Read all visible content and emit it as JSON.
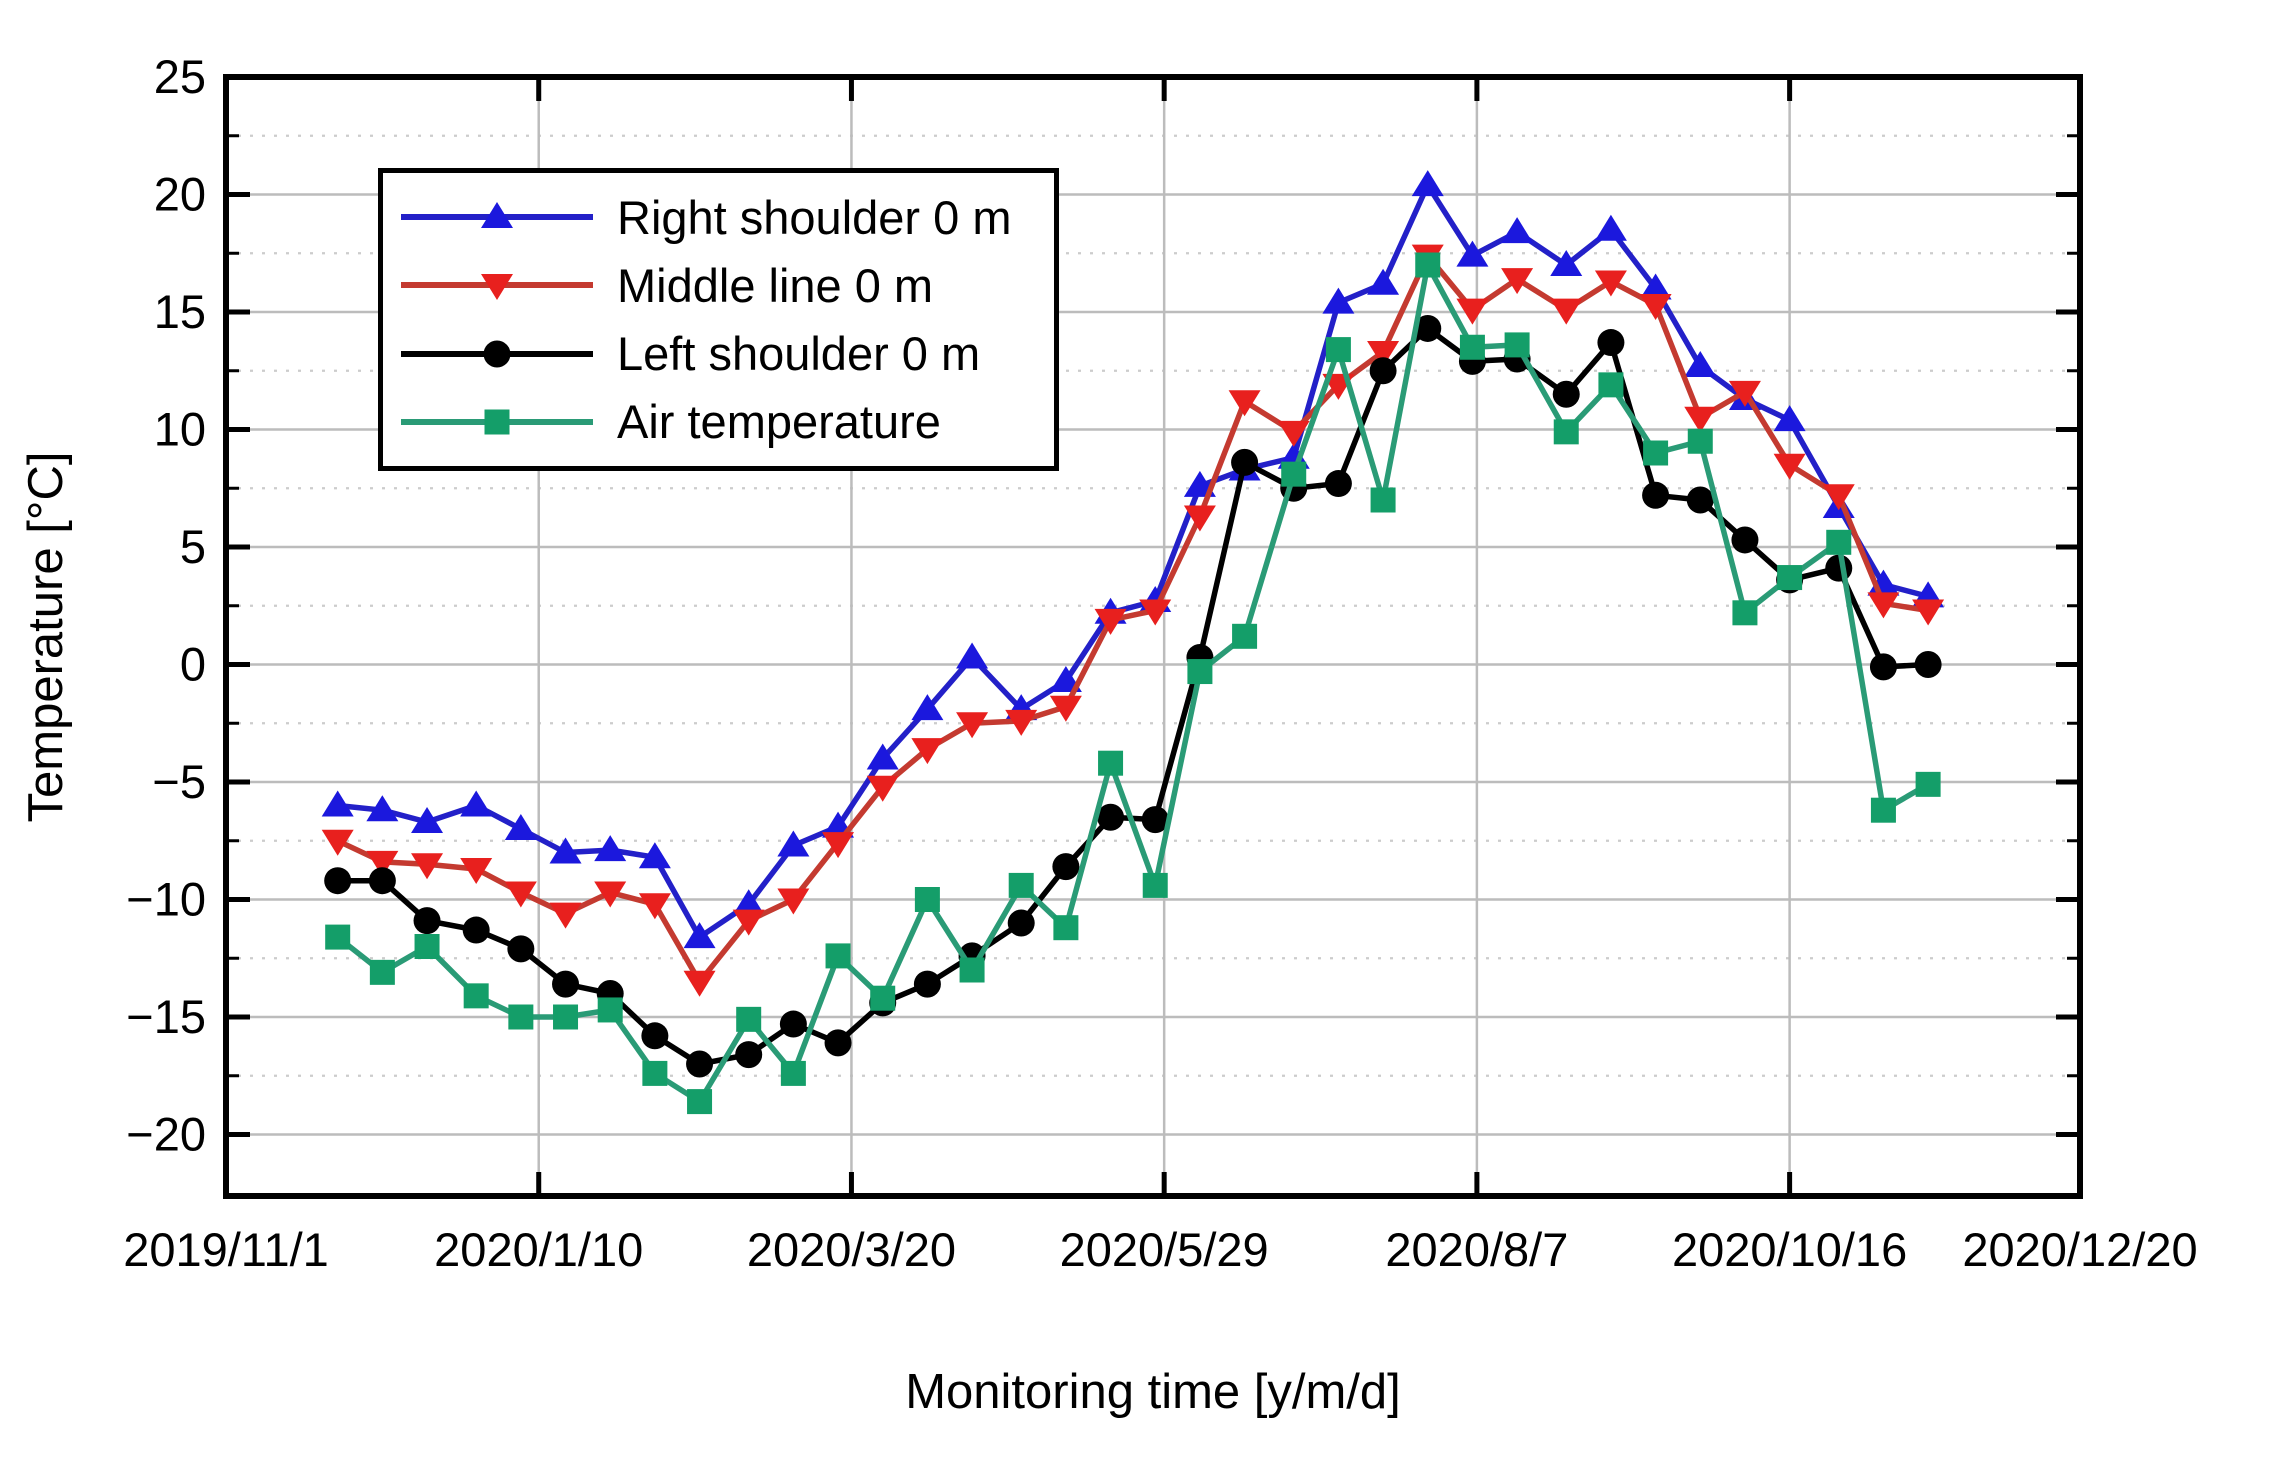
{
  "chart_data": {
    "type": "line",
    "title": "",
    "xlabel": "Monitoring time [y/m/d]",
    "ylabel": "Temperature [°C]",
    "legend_position": "top-left-inside",
    "grid": {
      "major_solid": true,
      "minor_dashed": true
    },
    "x_axis": {
      "range_days": [
        0,
        415
      ],
      "ticks": [
        {
          "label": "2019/11/1",
          "day": 0
        },
        {
          "label": "2020/1/10",
          "day": 70
        },
        {
          "label": "2020/3/20",
          "day": 140
        },
        {
          "label": "2020/5/29",
          "day": 210
        },
        {
          "label": "2020/8/7",
          "day": 280
        },
        {
          "label": "2020/10/16",
          "day": 350
        },
        {
          "label": "2020/12/20",
          "day": 415
        }
      ]
    },
    "y_axis": {
      "range": [
        -22.6,
        25
      ],
      "ticks": [
        {
          "label": "25",
          "value": 25
        },
        {
          "label": "20",
          "value": 20
        },
        {
          "label": "15",
          "value": 15
        },
        {
          "label": "10",
          "value": 10
        },
        {
          "label": "5",
          "value": 5
        },
        {
          "label": "0",
          "value": 0
        },
        {
          "label": "−5",
          "value": -5
        },
        {
          "label": "−10",
          "value": -10
        },
        {
          "label": "−15",
          "value": -15
        },
        {
          "label": "−20",
          "value": -20
        }
      ],
      "minor_values": [
        22.5,
        17.5,
        12.5,
        7.5,
        2.5,
        -2.5,
        -7.5,
        -12.5,
        -17.5
      ]
    },
    "x_days": [
      25,
      35,
      45,
      56,
      66,
      76,
      86,
      96,
      106,
      117,
      127,
      137,
      147,
      157,
      167,
      178,
      188,
      198,
      208,
      218,
      228,
      239,
      249,
      259,
      269,
      279,
      289,
      300,
      310,
      320,
      330,
      340,
      350,
      361,
      371,
      381
    ],
    "series": [
      {
        "name": "Right shoulder 0 m",
        "marker": "triangle-up",
        "line_color": "#2320c8",
        "marker_color": "#1b18dd",
        "values": [
          -6.0,
          -6.2,
          -6.7,
          -6.0,
          -7.0,
          -8.0,
          -7.9,
          -8.2,
          -11.6,
          -10.2,
          -7.7,
          -6.9,
          -4.0,
          -1.9,
          0.3,
          -1.9,
          -0.7,
          2.2,
          2.7,
          7.6,
          8.3,
          8.8,
          15.4,
          16.2,
          20.4,
          17.4,
          18.4,
          17.0,
          18.5,
          16.0,
          12.7,
          11.3,
          10.4,
          6.7,
          3.4,
          2.9
        ]
      },
      {
        "name": "Middle line 0 m",
        "marker": "triangle-down",
        "line_color": "#c43a30",
        "marker_color": "#e8201e",
        "values": [
          -7.5,
          -8.4,
          -8.5,
          -8.7,
          -9.7,
          -10.6,
          -9.7,
          -10.2,
          -13.5,
          -10.9,
          -10.0,
          -7.6,
          -5.2,
          -3.6,
          -2.5,
          -2.4,
          -1.8,
          1.9,
          2.3,
          6.3,
          11.2,
          9.9,
          11.9,
          13.3,
          17.4,
          15.1,
          16.4,
          15.1,
          16.3,
          15.3,
          10.5,
          11.6,
          8.5,
          7.2,
          2.6,
          2.3
        ]
      },
      {
        "name": "Left shoulder 0 m",
        "marker": "circle",
        "line_color": "#000000",
        "marker_color": "#000000",
        "values": [
          -9.2,
          -9.2,
          -10.9,
          -11.3,
          -12.1,
          -13.6,
          -14.0,
          -15.8,
          -17.0,
          -16.6,
          -15.3,
          -16.1,
          -14.4,
          -13.6,
          -12.4,
          -11.0,
          -8.6,
          -6.5,
          -6.6,
          0.3,
          8.6,
          7.5,
          7.7,
          12.5,
          14.3,
          12.9,
          13.0,
          11.5,
          13.7,
          7.2,
          7.0,
          5.3,
          3.6,
          4.1,
          -0.1,
          0.0
        ]
      },
      {
        "name": "Air temperature",
        "marker": "square",
        "line_color": "#2a9b76",
        "marker_color": "#149e69",
        "values": [
          -11.6,
          -13.1,
          -12.0,
          -14.1,
          -15.0,
          -15.0,
          -14.7,
          -17.4,
          -18.6,
          -15.1,
          -17.4,
          -12.4,
          -14.2,
          -10.0,
          -13.0,
          -9.4,
          -11.2,
          -4.2,
          -9.4,
          -0.3,
          1.2,
          8.1,
          13.4,
          7.0,
          17.0,
          13.5,
          13.6,
          9.9,
          11.9,
          9.0,
          9.5,
          2.2,
          3.7,
          5.2,
          -6.2,
          -5.1
        ]
      }
    ]
  }
}
